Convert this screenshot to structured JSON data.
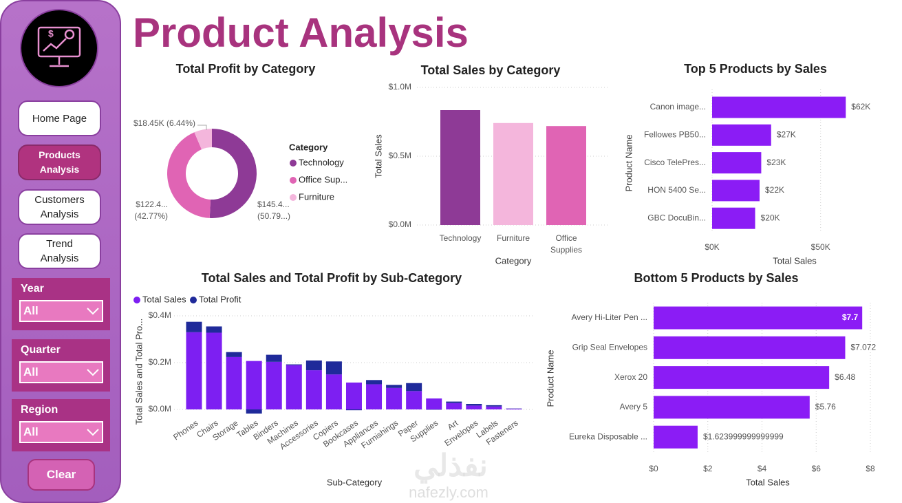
{
  "header": {
    "title": "Product Analysis"
  },
  "sidebar": {
    "nav": [
      "Home Page",
      "Products Analysis",
      "Customers Analysis",
      "Trend Analysis"
    ],
    "active_nav": 1,
    "slicers": [
      {
        "label": "Year",
        "value": "All"
      },
      {
        "label": "Quarter",
        "value": "All"
      },
      {
        "label": "Region",
        "value": "All"
      }
    ],
    "clear": "Clear"
  },
  "watermark": {
    "logo": "نفذلي",
    "url": "nafezly.com"
  },
  "chart_data": [
    {
      "type": "donut",
      "title": "Total Profit by Category",
      "legend_title": "Category",
      "categories": [
        "Technology",
        "Office Sup...",
        "Furniture"
      ],
      "values": [
        145400,
        122400,
        18450
      ],
      "value_labels": [
        [
          "$145.4...",
          "(50.79...)"
        ],
        [
          "$122.4...",
          "(42.77%)"
        ],
        [
          "$18.45K (6.44%)"
        ]
      ],
      "colors": [
        "#8e3a96",
        "#e064b4",
        "#f4b6dc"
      ]
    },
    {
      "type": "bar",
      "title": "Total Sales by Category",
      "x_label": "Category",
      "y_label": "Total Sales",
      "categories": [
        "Technology",
        "Furniture",
        "Office Supplies"
      ],
      "values": [
        835000,
        741000,
        719000
      ],
      "colors": [
        "#8e3a96",
        "#f4b6dc",
        "#e064b4"
      ],
      "ylim": [
        0,
        1000000
      ],
      "yticks": [
        {
          "value": 0,
          "label": "$0.0M"
        },
        {
          "value": 500000,
          "label": "$0.5M"
        },
        {
          "value": 1000000,
          "label": "$1.0M"
        }
      ],
      "grid": true
    },
    {
      "type": "hbar",
      "title": "Top 5 Products by Sales",
      "x_label": "Total Sales",
      "y_label": "Product Name",
      "categories": [
        "Canon image...",
        "Fellowes PB50...",
        "Cisco TelePres...",
        "HON 5400 Se...",
        "GBC DocuBin..."
      ],
      "values": [
        61600,
        27200,
        22640,
        21870,
        19830
      ],
      "value_labels": [
        "$62K",
        "$27K",
        "$23K",
        "$22K",
        "$20K"
      ],
      "color": "#8b1cf5",
      "xlim": [
        0,
        65000
      ],
      "xticks": [
        {
          "value": 0,
          "label": "$0K"
        },
        {
          "value": 50000,
          "label": "$50K"
        }
      ],
      "grid": true
    },
    {
      "type": "stacked_bar",
      "title": "Total Sales and Total Profit by Sub-Category",
      "x_label": "Sub-Category",
      "y_label": "Total Sales and Total Pro...",
      "categories": [
        "Phones",
        "Chairs",
        "Storage",
        "Tables",
        "Binders",
        "Machines",
        "Accessories",
        "Copiers",
        "Bookcases",
        "Appliances",
        "Furnishings",
        "Paper",
        "Supplies",
        "Art",
        "Envelopes",
        "Labels",
        "Fasteners"
      ],
      "series": [
        {
          "name": "Total Sales",
          "color": "#7d1ff2",
          "values": [
            330000,
            328000,
            223800,
            207000,
            203400,
            189200,
            167400,
            149500,
            114900,
            107500,
            91700,
            78500,
            46700,
            27100,
            16500,
            12500,
            3000
          ]
        },
        {
          "name": "Total Profit",
          "color": "#1f2a9a",
          "values": [
            44500,
            26600,
            21300,
            -17700,
            30200,
            3400,
            41900,
            55600,
            -3500,
            18100,
            13100,
            34050,
            -1200,
            6500,
            6960,
            5500,
            950
          ]
        }
      ],
      "ylim": [
        -30000,
        400000
      ],
      "yticks": [
        {
          "value": 0,
          "label": "$0.0M"
        },
        {
          "value": 200000,
          "label": "$0.2M"
        },
        {
          "value": 400000,
          "label": "$0.4M"
        }
      ],
      "grid": true
    },
    {
      "type": "hbar",
      "title": "Bottom 5 Products by Sales",
      "x_label": "Total Sales",
      "y_label": "Product Name",
      "categories": [
        "Avery Hi-Liter Pen ...",
        "Grip Seal Envelopes",
        "Xerox 20",
        "Avery 5",
        "Eureka Disposable ..."
      ],
      "values": [
        7.7,
        7.072,
        6.48,
        5.76,
        1.623999999999999
      ],
      "value_labels": [
        "$7.7",
        "$7.072",
        "$6.48",
        "$5.76",
        "$1.623999999999999"
      ],
      "color": "#8b1cf5",
      "xlim": [
        0,
        8
      ],
      "xticks": [
        {
          "value": 0,
          "label": "$0"
        },
        {
          "value": 2,
          "label": "$2"
        },
        {
          "value": 4,
          "label": "$4"
        },
        {
          "value": 6,
          "label": "$6"
        },
        {
          "value": 8,
          "label": "$8"
        }
      ],
      "grid": true
    }
  ]
}
